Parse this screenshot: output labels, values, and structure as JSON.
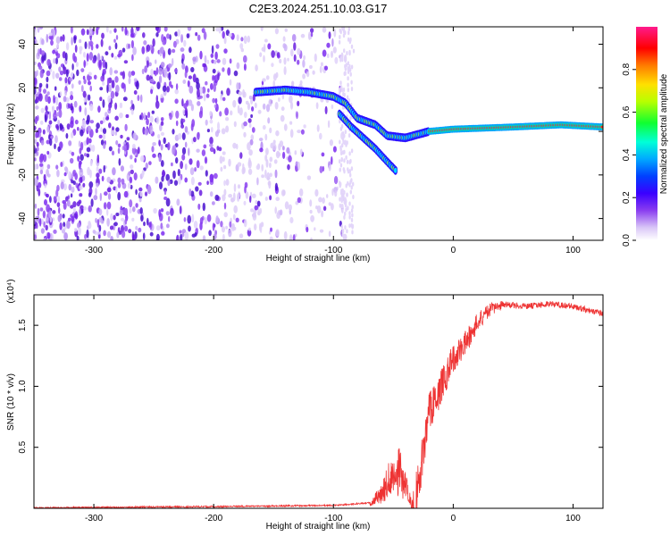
{
  "title": "C2E3.2024.251.10.03.G17",
  "chart_data": [
    {
      "type": "heatmap",
      "panel": "top",
      "xlabel": "Height of straight line (km)",
      "ylabel": "Frequency (Hz)",
      "xlim": [
        -350,
        125
      ],
      "ylim": [
        -50,
        48
      ],
      "xticks": [
        -300,
        -200,
        -100,
        0,
        100
      ],
      "yticks": [
        -40,
        -20,
        0,
        20,
        40
      ],
      "colorbar": {
        "label": "Normalized spectral amplitude",
        "range": [
          0,
          1
        ],
        "ticks": [
          "0.0",
          "0.2",
          "0.4",
          "0.6",
          "0.8"
        ],
        "colormap": "rainbow (white-violet-blue-cyan-green-yellow-red-magenta)"
      },
      "features": [
        {
          "name": "noise",
          "x_range": [
            -350,
            -90
          ],
          "y_range": [
            -50,
            48
          ]
        },
        {
          "name": "signal_track",
          "points": [
            [
              -165,
              18
            ],
            [
              -140,
              19
            ],
            [
              -120,
              18
            ],
            [
              -100,
              16
            ],
            [
              -90,
              13
            ],
            [
              -80,
              6
            ],
            [
              -65,
              3
            ],
            [
              -55,
              -2
            ],
            [
              -40,
              -3
            ],
            [
              -20,
              0
            ],
            [
              0,
              1
            ],
            [
              50,
              2
            ],
            [
              90,
              3
            ],
            [
              125,
              2
            ]
          ]
        },
        {
          "name": "secondary_branch",
          "points": [
            [
              -95,
              8
            ],
            [
              -85,
              2
            ],
            [
              -75,
              -3
            ],
            [
              -65,
              -8
            ],
            [
              -55,
              -14
            ],
            [
              -48,
              -18
            ]
          ]
        }
      ]
    },
    {
      "type": "line",
      "panel": "bottom",
      "xlabel": "Height of straight line (km)",
      "ylabel": "SNR (10 * v/v)",
      "yunit": "(x10⁴)",
      "xlim": [
        -350,
        125
      ],
      "ylim": [
        0,
        1.75
      ],
      "xticks": [
        -300,
        -200,
        -100,
        0,
        100
      ],
      "yticks": [
        "0.5",
        "1.0",
        "1.5"
      ],
      "color": "#ee3333",
      "envelope": {
        "x": [
          -350,
          -200,
          -100,
          -70,
          -60,
          -55,
          -50,
          -45,
          -40,
          -35,
          -30,
          -20,
          -10,
          0,
          10,
          20,
          30,
          40,
          60,
          80,
          100,
          125
        ],
        "y": [
          0.01,
          0.02,
          0.03,
          0.05,
          0.2,
          0.35,
          0.45,
          0.5,
          0.3,
          0.08,
          0.35,
          0.95,
          1.15,
          1.35,
          1.45,
          1.6,
          1.68,
          1.7,
          1.68,
          1.7,
          1.68,
          1.62
        ]
      }
    }
  ]
}
